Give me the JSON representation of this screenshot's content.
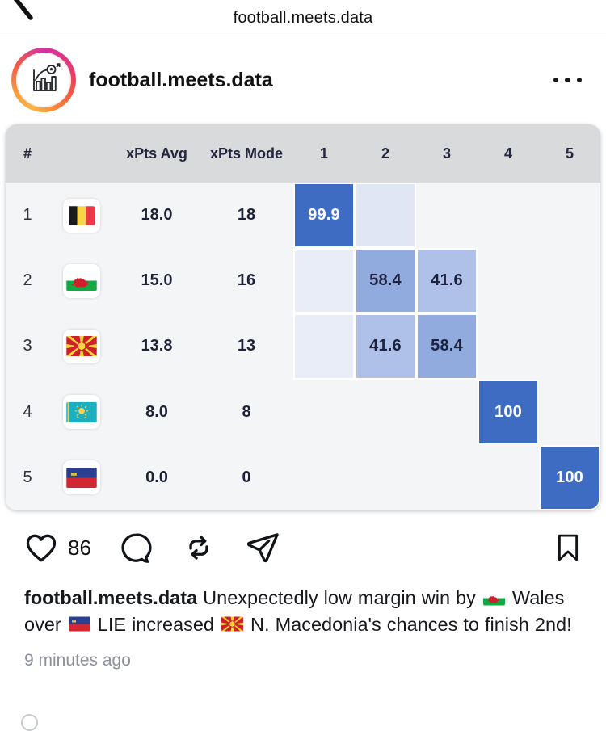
{
  "nav": {
    "title": "football.meets.data",
    "back_icon": "chevron-left-icon"
  },
  "header": {
    "username": "football.meets.data",
    "avatar_icon": "bar-chart-football-logo",
    "menu_icon": "ellipsis-icon"
  },
  "table": {
    "columns": [
      "#",
      "",
      "xPts Avg",
      "xPts Mode",
      "1",
      "2",
      "3",
      "4",
      "5"
    ],
    "colors": {
      "header_bg": "#d9dadc",
      "row_bg": "#f4f5f7",
      "strong_blue": "#3e6cc2",
      "mid_blue": "#92abdf",
      "light_blue": "#b0c1e9",
      "faint_blue": "#e0e6f3",
      "fainter_blue": "#e9edf7",
      "text": "#1d2237"
    },
    "rows": [
      {
        "rank": "1",
        "team": "Belgium",
        "flag": "belgium",
        "xpts_avg": "18.0",
        "xpts_mode": "18",
        "cells": [
          {
            "label": "99.9",
            "bg": "#3e6cc2",
            "fg": "#ffffff"
          },
          {
            "label": "",
            "bg": "#e0e6f3",
            "fg": ""
          },
          null,
          null,
          null
        ]
      },
      {
        "rank": "2",
        "team": "Wales",
        "flag": "wales",
        "xpts_avg": "15.0",
        "xpts_mode": "16",
        "cells": [
          {
            "label": "",
            "bg": "#e9edf7",
            "fg": ""
          },
          {
            "label": "58.4",
            "bg": "#92abdf",
            "fg": "#1c2240"
          },
          {
            "label": "41.6",
            "bg": "#b0c1e9",
            "fg": "#1c2240"
          },
          null,
          null
        ]
      },
      {
        "rank": "3",
        "team": "North Macedonia",
        "flag": "north-macedonia",
        "xpts_avg": "13.8",
        "xpts_mode": "13",
        "cells": [
          {
            "label": "",
            "bg": "#e9edf7",
            "fg": ""
          },
          {
            "label": "41.6",
            "bg": "#b0c1e9",
            "fg": "#1c2240"
          },
          {
            "label": "58.4",
            "bg": "#92abdf",
            "fg": "#1c2240"
          },
          null,
          null
        ]
      },
      {
        "rank": "4",
        "team": "Kazakhstan",
        "flag": "kazakhstan",
        "xpts_avg": "8.0",
        "xpts_mode": "8",
        "cells": [
          null,
          null,
          null,
          {
            "label": "100",
            "bg": "#3e6cc2",
            "fg": "#ffffff"
          },
          null
        ]
      },
      {
        "rank": "5",
        "team": "Liechtenstein",
        "flag": "liechtenstein",
        "xpts_avg": "0.0",
        "xpts_mode": "0",
        "cells": [
          null,
          null,
          null,
          null,
          {
            "label": "100",
            "bg": "#3e6cc2",
            "fg": "#ffffff"
          }
        ]
      }
    ]
  },
  "chart_data": {
    "type": "heatmap",
    "columns": [
      "1",
      "2",
      "3",
      "4",
      "5"
    ],
    "rows": [
      "Belgium",
      "Wales",
      "North Macedonia",
      "Kazakhstan",
      "Liechtenstein"
    ],
    "values": [
      [
        99.9,
        null,
        null,
        null,
        null
      ],
      [
        null,
        58.4,
        41.6,
        null,
        null
      ],
      [
        null,
        41.6,
        58.4,
        null,
        null
      ],
      [
        null,
        null,
        null,
        100,
        null
      ],
      [
        null,
        null,
        null,
        null,
        100
      ]
    ],
    "extra_columns": {
      "xPts Avg": [
        18.0,
        15.0,
        13.8,
        8.0,
        0.0
      ],
      "xPts Mode": [
        18,
        16,
        13,
        8,
        0
      ]
    },
    "legend_position": "none",
    "grid": false
  },
  "actions": {
    "likes": "86",
    "like_icon": "heart-icon",
    "comment_icon": "comment-icon",
    "repost_icon": "repost-icon",
    "share_icon": "share-icon",
    "save_icon": "bookmark-icon"
  },
  "caption": {
    "username": "football.meets.data",
    "p1": " Unexpectedly low margin win by ",
    "flag1": "wales",
    "p2": " Wales over ",
    "flag2": "liechtenstein",
    "p3": " LIE increased ",
    "flag3": "north-macedonia",
    "p4": " N. Macedonia's chances to finish 2nd!"
  },
  "timestamp": "9 minutes ago"
}
